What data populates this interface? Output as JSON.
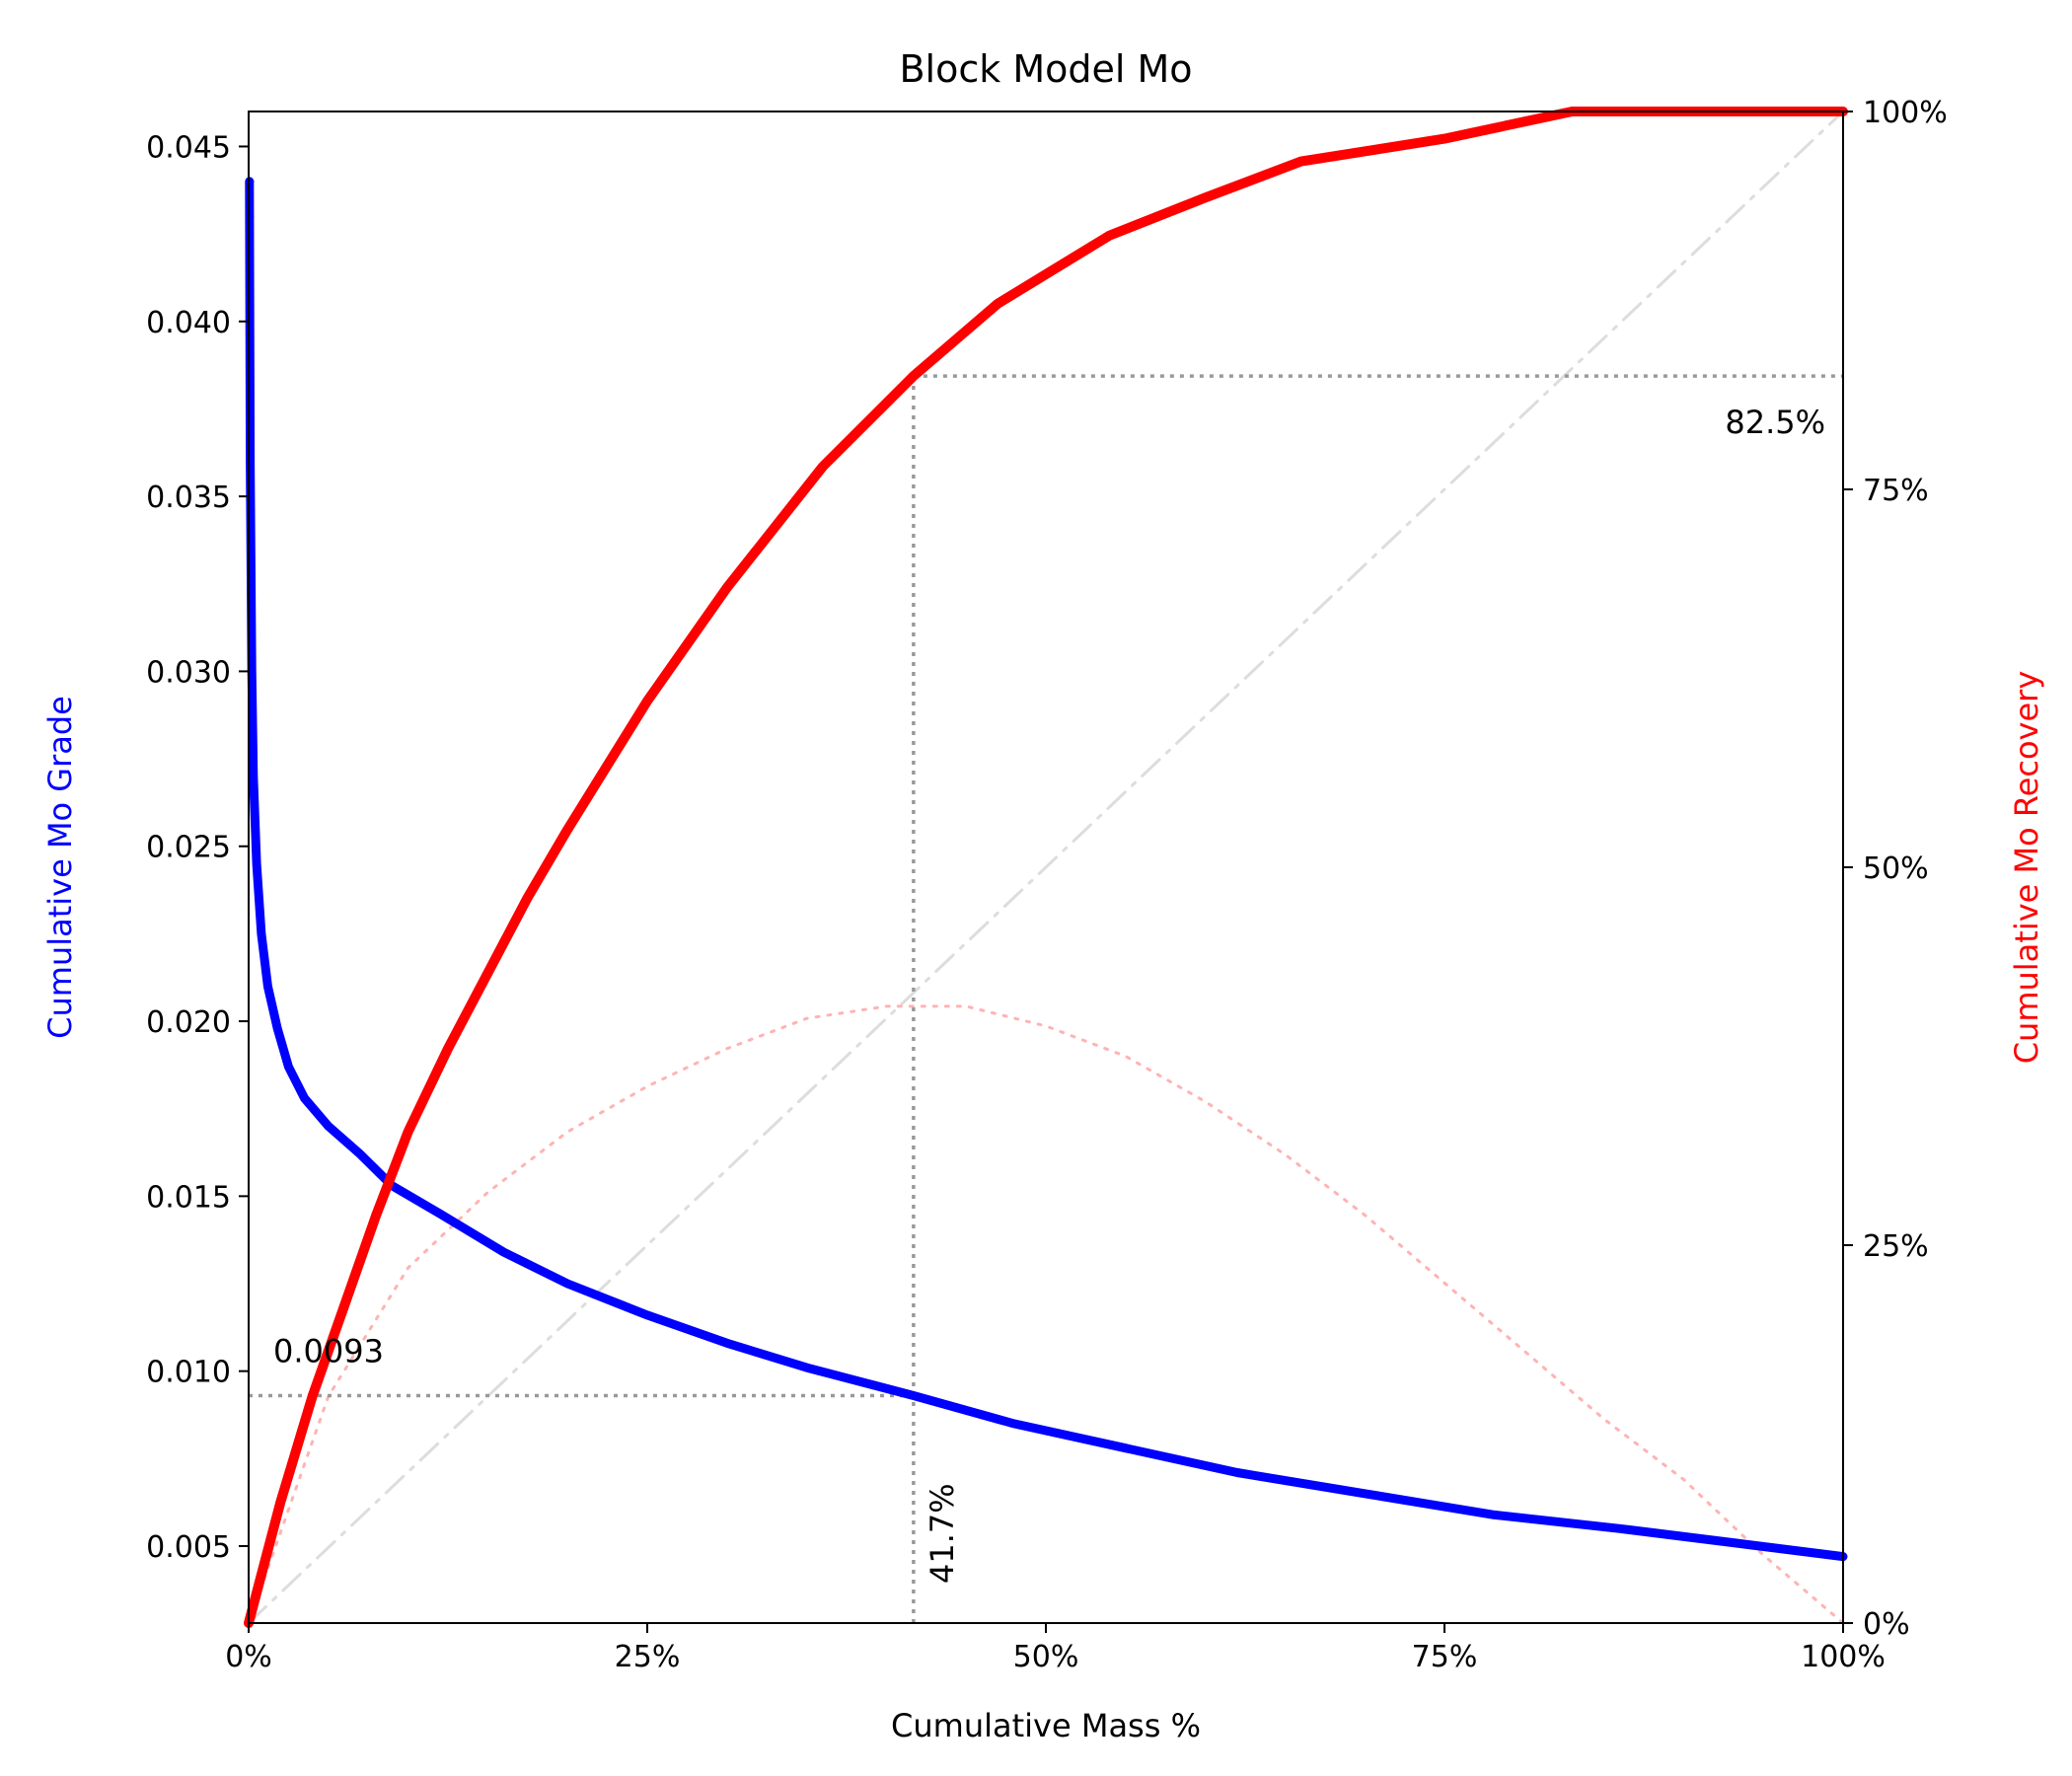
{
  "chart_data": {
    "type": "line",
    "title": "Block Model Mo",
    "xlabel": "Cumulative Mass %",
    "ylabel_left": "Cumulative Mo Grade",
    "ylabel_right": "Cumulative Mo Recovery",
    "xlim": [
      0,
      100
    ],
    "ylim_left": [
      0.0028,
      0.046
    ],
    "ylim_right": [
      0,
      100
    ],
    "x_ticks": [
      "0%",
      "25%",
      "50%",
      "75%",
      "100%"
    ],
    "y_left_ticks": [
      "0.005",
      "0.010",
      "0.015",
      "0.020",
      "0.025",
      "0.030",
      "0.035",
      "0.040",
      "0.045"
    ],
    "y_right_ticks": [
      "0%",
      "25%",
      "50%",
      "75%",
      "100%"
    ],
    "grid": false,
    "colors": {
      "grade": "#0000ff",
      "recovery": "#ff0000",
      "diagonal": "#dddddd",
      "difference": "#ffb3b3",
      "cutoff": "#999999"
    },
    "series": [
      {
        "name": "Cumulative Mo Grade",
        "axis": "left",
        "x": [
          0.05,
          0.1,
          0.2,
          0.3,
          0.5,
          0.8,
          1.2,
          1.8,
          2.5,
          3.5,
          5,
          7,
          9,
          12,
          16,
          20,
          25,
          30,
          35,
          41.7,
          48,
          55,
          62,
          70,
          78,
          86,
          93,
          100
        ],
        "y": [
          0.044,
          0.036,
          0.03,
          0.027,
          0.0245,
          0.0225,
          0.021,
          0.0198,
          0.0187,
          0.0178,
          0.017,
          0.0162,
          0.0153,
          0.0145,
          0.0134,
          0.0125,
          0.0116,
          0.0108,
          0.0101,
          0.0093,
          0.0085,
          0.0078,
          0.0071,
          0.0065,
          0.0059,
          0.0055,
          0.0051,
          0.0047
        ]
      },
      {
        "name": "Cumulative Mo Recovery",
        "axis": "right",
        "x": [
          0,
          2,
          4,
          6,
          8,
          10,
          12.5,
          15,
          17.5,
          20,
          25,
          30,
          36,
          41.7,
          47,
          54,
          60,
          66,
          75,
          83,
          100
        ],
        "y": [
          0,
          8,
          15,
          21,
          27,
          32.5,
          38,
          43,
          48,
          52.5,
          61,
          68.5,
          76.5,
          82.5,
          87.3,
          91.8,
          94.3,
          96.7,
          98.2,
          100,
          100
        ]
      },
      {
        "name": "Recovery minus Mass",
        "axis": "right",
        "x": [
          0,
          5,
          10,
          15,
          20,
          25,
          30,
          35,
          40,
          45,
          50,
          55,
          60,
          65,
          70,
          75,
          80,
          85,
          90,
          95,
          100
        ],
        "y": [
          0,
          15,
          23.5,
          28.5,
          32.5,
          35.5,
          38,
          40,
          40.8,
          40.8,
          39.5,
          37.5,
          34.5,
          31,
          27,
          22.5,
          18,
          13.5,
          9.5,
          4.5,
          0
        ]
      },
      {
        "name": "Mass = Recovery",
        "axis": "right",
        "x": [
          0,
          100
        ],
        "y": [
          0,
          100
        ]
      }
    ],
    "cutoff": {
      "mass": 41.7,
      "grade": 0.0093,
      "recovery": 82.5
    },
    "annotations": {
      "grade_label": "0.0093",
      "mass_label": "41.7%",
      "recovery_label": "82.5%"
    }
  }
}
